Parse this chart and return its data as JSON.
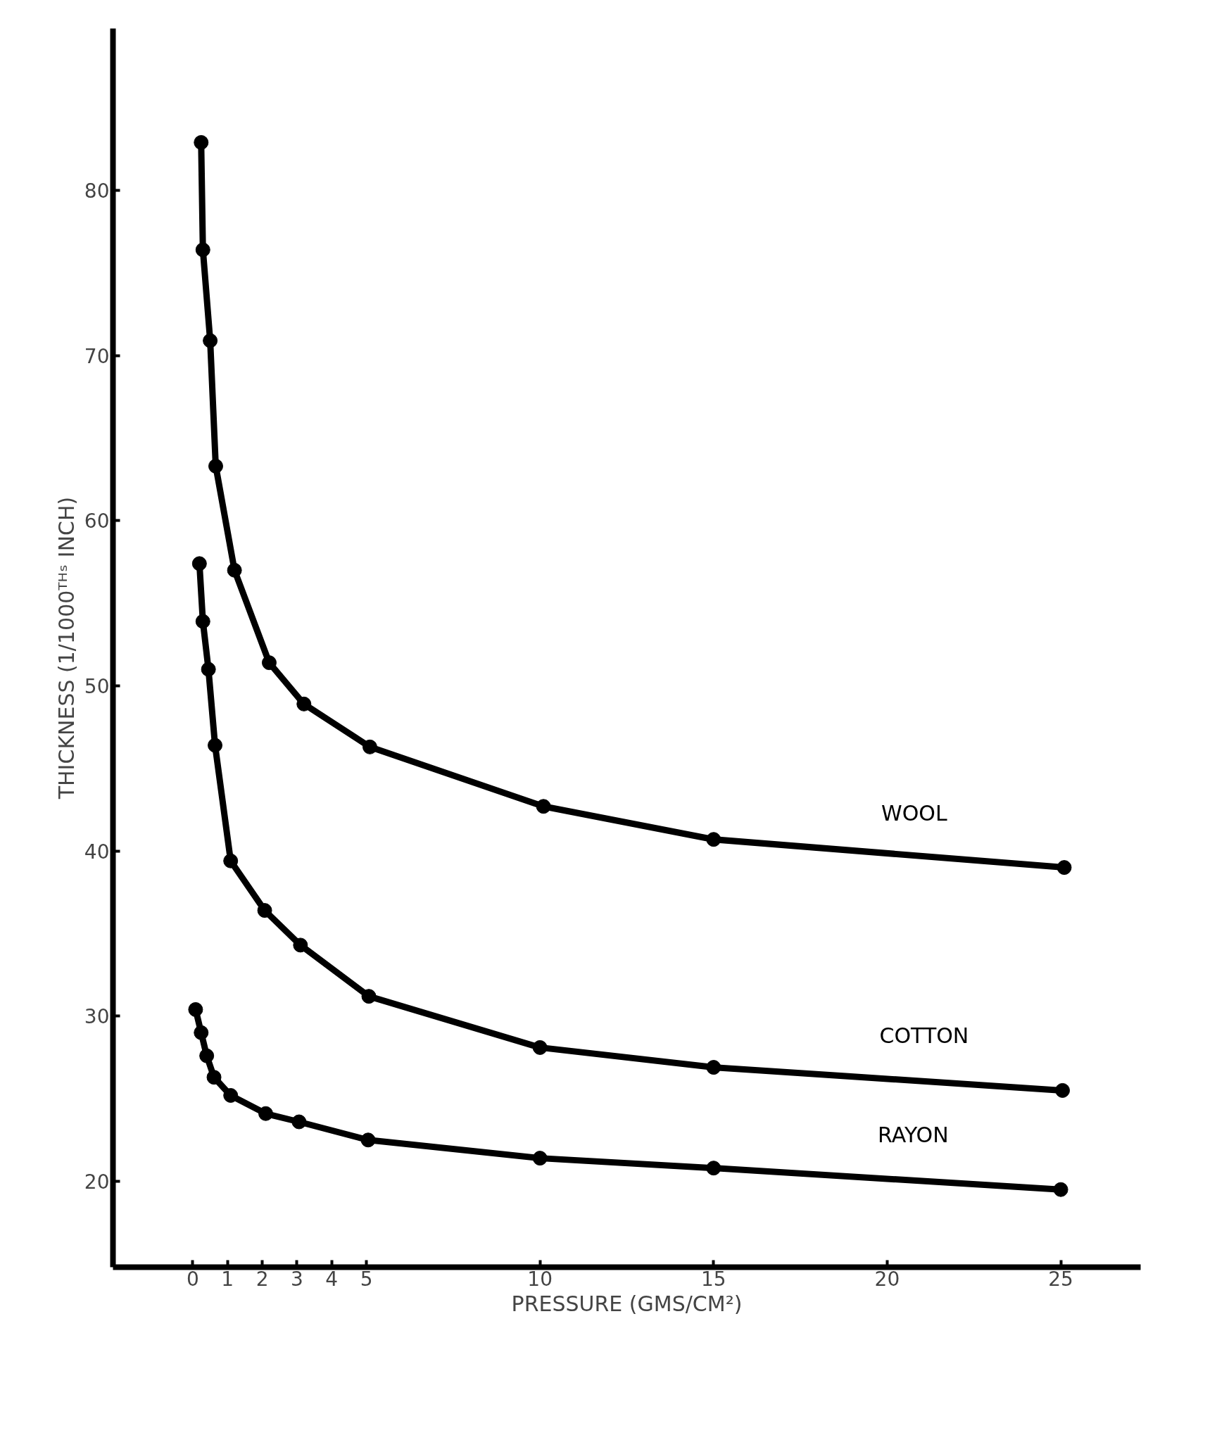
{
  "chart_data": {
    "type": "line",
    "xlabel": "PRESSURE (GMS/CM²)",
    "ylabel": "THICKNESS (1/1000ᵀᴴˢ INCH)",
    "xlim": [
      -2.3,
      27.3
    ],
    "ylim": [
      14.8,
      89.8
    ],
    "xticks": [
      0,
      1,
      2,
      3,
      4,
      5,
      10,
      15,
      20,
      25
    ],
    "yticks": [
      20,
      30,
      40,
      50,
      60,
      70,
      80
    ],
    "grid": false,
    "marker": "circle",
    "line_style": "solid",
    "series": [
      {
        "name": "WOOL",
        "color": "#000000",
        "x": [
          0.24,
          0.29,
          0.5,
          0.66,
          1.2,
          2.2,
          3.2,
          5.1,
          10.1,
          15.0,
          25.1
        ],
        "values": [
          82.9,
          76.4,
          70.9,
          63.3,
          57.0,
          51.4,
          48.9,
          46.3,
          42.7,
          40.7,
          39.0
        ]
      },
      {
        "name": "COTTON",
        "color": "#000000",
        "x": [
          0.19,
          0.29,
          0.45,
          0.64,
          1.09,
          2.07,
          3.1,
          5.07,
          10.0,
          15.0,
          25.05
        ],
        "values": [
          57.4,
          53.9,
          51.0,
          46.4,
          39.4,
          36.4,
          34.3,
          31.2,
          28.1,
          26.9,
          25.5
        ]
      },
      {
        "name": "RAYON",
        "color": "#000000",
        "x": [
          0.08,
          0.24,
          0.4,
          0.61,
          1.09,
          2.1,
          3.06,
          5.05,
          10.0,
          15.0,
          25.0
        ],
        "values": [
          30.4,
          29.0,
          27.6,
          26.3,
          25.2,
          24.1,
          23.6,
          22.5,
          21.4,
          20.8,
          19.5
        ]
      }
    ]
  }
}
